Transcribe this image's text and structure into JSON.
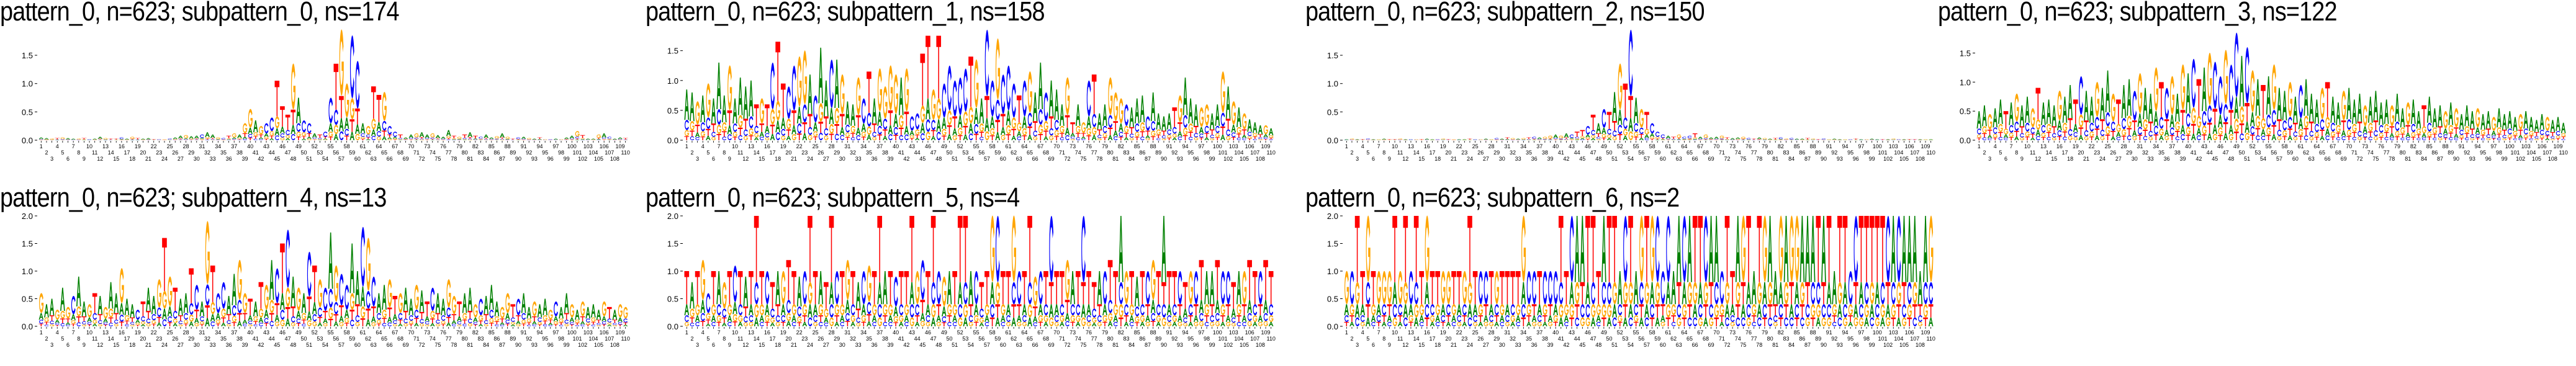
{
  "colors": {
    "A": "#008000",
    "C": "#0000ff",
    "G": "#ffa500",
    "T": "#ff0000"
  },
  "chart_data": [
    {
      "type": "sequence-logo",
      "title": "pattern_0, n=623; subpattern_0, ns=174",
      "ylim": [
        0,
        1.95
      ],
      "yticks": [
        "0.0",
        "0.5",
        "1.0",
        "1.5"
      ],
      "heights": [
        0.05,
        0.04,
        0.03,
        0.04,
        0.05,
        0.04,
        0.03,
        0.03,
        0.04,
        0.02,
        0.03,
        0.06,
        0.04,
        0.03,
        0.03,
        0.05,
        0.03,
        0.06,
        0.04,
        0.03,
        0.04,
        0.02,
        0.02,
        0.02,
        0.03,
        0.05,
        0.08,
        0.09,
        0.07,
        0.08,
        0.1,
        0.14,
        0.1,
        0.05,
        0.04,
        0.08,
        0.12,
        0.1,
        0.3,
        0.55,
        0.35,
        0.25,
        0.3,
        0.4,
        1.05,
        0.6,
        0.45,
        1.35,
        0.75,
        0.35,
        0.3,
        0.12,
        0.1,
        0.15,
        0.75,
        1.35,
        1.95,
        1.0,
        1.85,
        1.4,
        0.3,
        0.25,
        0.95,
        0.8,
        0.85,
        0.25,
        0.15,
        0.1,
        0.05,
        0.1,
        0.12,
        0.14,
        0.1,
        0.12,
        0.09,
        0.06,
        0.18,
        0.08,
        0.06,
        0.1,
        0.14,
        0.08,
        0.06,
        0.1,
        0.05,
        0.07,
        0.12,
        0.06,
        0.03,
        0.05,
        0.06,
        0.04,
        0.03,
        0.05,
        0.02,
        0.02,
        0.03,
        0.02,
        0.05,
        0.08,
        0.16,
        0.09,
        0.03,
        0.03,
        0.1,
        0.12,
        0.06,
        0.03,
        0.05,
        0.04
      ],
      "top_letters": "AAGTGAAGTCAAGTTCAGTAATCGCAAGAACAAGCTGAGGAGCCTTTGACCATCCTGGCCAGTTGCCTAAGAAGAAATGTATCAAGAGTCAGATGCAGAAGTAAGACAAT"
    },
    {
      "type": "sequence-logo",
      "title": "pattern_0, n=623; subpattern_1, ns=158",
      "ylim": [
        0,
        1.85
      ],
      "yticks": [
        "0.0",
        "0.5",
        "1.0",
        "1.5"
      ],
      "heights": [
        0.85,
        0.8,
        0.65,
        0.75,
        0.95,
        0.7,
        1.3,
        0.75,
        1.25,
        0.7,
        1.05,
        0.9,
        1.0,
        0.6,
        0.7,
        0.6,
        1.3,
        1.65,
        0.95,
        0.9,
        1.25,
        1.4,
        1.5,
        1.1,
        0.75,
        1.55,
        1.0,
        1.35,
        1.35,
        1.1,
        0.65,
        0.6,
        1.05,
        0.7,
        1.15,
        0.7,
        1.2,
        0.9,
        1.25,
        1.1,
        1.05,
        1.2,
        0.4,
        0.45,
        1.45,
        1.75,
        0.85,
        1.75,
        0.95,
        1.25,
        1.0,
        1.05,
        1.2,
        1.4,
        1.35,
        0.7,
        1.85,
        1.0,
        1.7,
        1.1,
        1.25,
        0.95,
        0.75,
        1.0,
        1.15,
        0.8,
        1.3,
        0.8,
        1.0,
        0.85,
        0.6,
        1.05,
        0.3,
        0.6,
        0.3,
        1.0,
        1.1,
        0.45,
        0.6,
        1.05,
        0.8,
        0.7,
        0.6,
        0.55,
        0.7,
        0.75,
        0.4,
        0.8,
        0.45,
        0.4,
        0.45,
        0.55,
        0.75,
        1.05,
        0.7,
        0.6,
        0.55,
        0.6,
        0.45,
        0.6,
        1.15,
        0.9,
        0.65,
        0.55,
        0.45,
        0.35,
        0.3,
        0.25,
        0.25,
        0.2
      ],
      "top_letters": "AAGAGAAAGAAAATGTCTTCCGGACAACAGAAGCTAGGGGAGCCTTGTCCCCCTGACCGCCCTCGAACAAAGTAGCTAAGGGCAAACAAAATGAAAGGAAGAGAGAAAG"
    },
    {
      "type": "sequence-logo",
      "title": "pattern_0, n=623; subpattern_2, ns=150",
      "ylim": [
        0,
        1.95
      ],
      "yticks": [
        "0.0",
        "0.5",
        "1.0",
        "1.5"
      ],
      "heights": [
        0.02,
        0.03,
        0.02,
        0.02,
        0.03,
        0.02,
        0.02,
        0.03,
        0.02,
        0.02,
        0.03,
        0.02,
        0.02,
        0.02,
        0.02,
        0.03,
        0.02,
        0.02,
        0.03,
        0.02,
        0.02,
        0.02,
        0.02,
        0.03,
        0.02,
        0.02,
        0.03,
        0.02,
        0.04,
        0.03,
        0.05,
        0.04,
        0.03,
        0.04,
        0.05,
        0.06,
        0.05,
        0.06,
        0.08,
        0.1,
        0.08,
        0.12,
        0.1,
        0.15,
        0.18,
        0.25,
        0.45,
        0.3,
        0.55,
        0.5,
        0.85,
        1.35,
        1.0,
        1.95,
        0.75,
        0.55,
        0.5,
        0.3,
        0.15,
        0.1,
        0.08,
        0.06,
        0.1,
        0.06,
        0.08,
        0.12,
        0.06,
        0.1,
        0.05,
        0.06,
        0.08,
        0.05,
        0.04,
        0.05,
        0.06,
        0.04,
        0.03,
        0.05,
        0.04,
        0.03,
        0.04,
        0.05,
        0.03,
        0.04,
        0.03,
        0.03,
        0.04,
        0.03,
        0.02,
        0.03,
        0.02,
        0.03,
        0.02,
        0.02,
        0.02,
        0.03,
        0.02,
        0.02,
        0.03,
        0.02,
        0.02,
        0.02,
        0.03,
        0.02,
        0.02,
        0.02,
        0.02,
        0.02,
        0.02,
        0.02
      ],
      "top_letters": "AGATCAGATTGACGTAACGTGAATCGAGCATGAGTCAGGAGACTTCTACTAGTCAGTCCCATGCCTAGAAGTAAGCTAGATCGCAATGTCGAAGCTAGAATAGCATTAG"
    },
    {
      "type": "sequence-logo",
      "title": "pattern_0, n=623; subpattern_3, ns=122",
      "ylim": [
        0,
        1.9
      ],
      "yticks": [
        "0.0",
        "0.5",
        "1.0",
        "1.5"
      ],
      "heights": [
        0.5,
        0.6,
        0.45,
        0.55,
        0.7,
        0.5,
        0.65,
        0.8,
        0.6,
        0.75,
        0.55,
        0.9,
        0.65,
        0.7,
        0.6,
        0.85,
        0.75,
        0.95,
        0.7,
        1.1,
        0.85,
        0.75,
        1.0,
        0.9,
        1.2,
        0.8,
        0.7,
        0.95,
        1.05,
        0.85,
        1.15,
        0.9,
        0.8,
        1.25,
        1.0,
        0.9,
        1.1,
        0.8,
        1.3,
        1.15,
        1.4,
        1.05,
        1.25,
        1.5,
        1.35,
        1.1,
        1.55,
        1.3,
        1.85,
        1.45,
        1.6,
        1.2,
        1.05,
        0.95,
        1.1,
        1.3,
        0.9,
        0.85,
        1.0,
        0.75,
        0.95,
        1.05,
        0.8,
        0.7,
        0.9,
        1.0,
        0.75,
        0.65,
        0.85,
        0.9,
        0.7,
        0.8,
        0.6,
        0.75,
        0.85,
        0.65,
        0.7,
        0.6,
        0.8,
        0.55,
        0.65,
        0.7,
        0.5,
        0.6,
        0.75,
        0.55,
        0.6,
        0.5,
        0.65,
        0.55,
        0.45,
        0.6,
        0.5,
        0.55,
        0.45,
        0.5,
        0.4,
        0.55,
        0.45,
        0.5,
        0.4,
        0.45,
        0.5,
        0.4,
        0.35,
        0.45,
        0.4,
        0.35,
        0.4,
        0.3
      ],
      "top_letters": "AAGAATAGAAGTAAAGAATCAAGAAGTAACGAAGTCGAGACTAGCCGCCACGATAGAAGACAAAGTAAGAAAGAAAAGAAGAATAAAGAGAAAGAAGAAAAGAAAAGAAA"
    },
    {
      "type": "sequence-logo",
      "title": "pattern_0, n=623; subpattern_4, ns=13",
      "ylim": [
        0,
        2.0
      ],
      "yticks": [
        "0.0",
        "0.5",
        "1.0",
        "1.5",
        "2.0"
      ],
      "heights": [
        0.6,
        0.4,
        0.5,
        0.3,
        0.7,
        0.35,
        0.55,
        0.9,
        0.45,
        0.4,
        0.6,
        0.55,
        0.35,
        0.8,
        0.6,
        1.05,
        0.5,
        0.4,
        0.3,
        0.45,
        0.7,
        0.55,
        0.85,
        1.6,
        0.9,
        0.7,
        0.5,
        0.6,
        1.05,
        0.75,
        0.45,
        1.9,
        1.1,
        0.6,
        0.8,
        0.55,
        0.95,
        1.2,
        0.6,
        0.5,
        0.45,
        0.8,
        0.75,
        1.2,
        1.05,
        1.5,
        1.75,
        0.9,
        0.7,
        0.6,
        1.35,
        1.1,
        0.85,
        0.7,
        1.7,
        1.1,
        0.95,
        0.75,
        1.5,
        1.0,
        1.8,
        1.6,
        0.9,
        0.6,
        0.75,
        0.85,
        0.55,
        0.6,
        0.7,
        0.5,
        0.75,
        0.65,
        0.45,
        0.7,
        0.6,
        0.5,
        0.85,
        0.55,
        0.45,
        0.6,
        0.7,
        0.4,
        0.5,
        0.55,
        0.75,
        0.45,
        0.35,
        0.6,
        0.4,
        0.5,
        0.6,
        0.35,
        0.45,
        0.4,
        0.5,
        0.3,
        0.45,
        0.35,
        0.6,
        0.4,
        0.3,
        0.45,
        0.35,
        0.4,
        0.3,
        0.45,
        0.35,
        0.3,
        0.4,
        0.35
      ],
      "top_letters": "GAAGAGCAAGTAGAAGAACTAAGTGTAATCAGTCCAAGGTATGACTCAGACTGCAGCCAACGCAAGTGAAGATCAAGGTAAGCAAAGGTCAAGAAGCAAGAGAAAGTAG"
    },
    {
      "type": "sequence-logo",
      "title": "pattern_0, n=623; subpattern_5, ns=4",
      "ylim": [
        0,
        2.0
      ],
      "yticks": [
        "0.0",
        "0.5",
        "1.0",
        "1.5",
        "2.0"
      ],
      "heights": [
        1.0,
        0.8,
        1.0,
        1.2,
        0.6,
        1.0,
        1.0,
        0.8,
        1.0,
        1.1,
        1.0,
        0.9,
        1.0,
        2.0,
        1.0,
        1.0,
        0.8,
        1.0,
        1.0,
        1.2,
        1.0,
        0.9,
        1.0,
        2.0,
        1.0,
        1.0,
        0.8,
        2.0,
        1.0,
        1.0,
        1.2,
        1.0,
        0.8,
        1.0,
        1.1,
        1.0,
        2.0,
        1.0,
        1.0,
        0.9,
        1.0,
        1.0,
        2.0,
        1.0,
        1.2,
        1.0,
        2.0,
        1.0,
        0.9,
        1.0,
        1.0,
        2.0,
        2.0,
        1.0,
        1.0,
        0.8,
        1.0,
        2.0,
        2.0,
        1.0,
        1.0,
        2.0,
        1.0,
        1.0,
        2.0,
        0.9,
        1.0,
        1.0,
        2.0,
        1.0,
        1.0,
        1.2,
        1.0,
        1.0,
        2.0,
        1.0,
        0.8,
        1.0,
        1.0,
        1.2,
        1.0,
        2.0,
        1.0,
        1.0,
        0.9,
        1.0,
        1.0,
        1.2,
        1.0,
        2.0,
        1.0,
        1.0,
        1.0,
        0.8,
        1.0,
        1.0,
        1.2,
        1.0,
        1.0,
        1.2,
        1.0,
        1.0,
        0.8,
        1.0,
        1.0,
        1.2,
        1.0,
        1.0,
        1.2,
        1.0
      ],
      "top_letters": "TATGCTAGTCTATTTCTAGTTACTTATTCTGTACGTTATCTTTGCTTCGATTTACTTGCTTGCTTGCTCTTGATCTTACTTAGTATCGTATTCTGCTAATCCTAGTTCT"
    },
    {
      "type": "sequence-logo",
      "title": "pattern_0, n=623; subpattern_6, ns=2",
      "ylim": [
        0,
        2.0
      ],
      "yticks": [
        "0.0",
        "0.5",
        "1.0",
        "1.5",
        "2.0"
      ],
      "heights": [
        1.0,
        1.0,
        2.0,
        1.0,
        2.0,
        1.0,
        1.0,
        1.0,
        1.0,
        2.0,
        1.0,
        2.0,
        1.0,
        2.0,
        1.0,
        2.0,
        1.0,
        1.0,
        1.0,
        1.0,
        1.0,
        1.0,
        1.0,
        2.0,
        1.0,
        1.0,
        1.0,
        1.0,
        1.0,
        1.0,
        1.0,
        1.0,
        1.0,
        2.0,
        1.0,
        1.0,
        1.0,
        1.0,
        1.0,
        1.0,
        2.0,
        1.0,
        2.0,
        2.0,
        2.0,
        2.0,
        2.0,
        1.0,
        2.0,
        2.0,
        2.0,
        1.0,
        2.0,
        2.0,
        1.0,
        2.0,
        2.0,
        2.0,
        2.0,
        1.0,
        2.0,
        1.0,
        2.0,
        2.0,
        2.0,
        2.0,
        2.0,
        2.0,
        2.0,
        2.0,
        1.0,
        2.0,
        1.0,
        2.0,
        2.0,
        2.0,
        1.0,
        2.0,
        2.0,
        2.0,
        1.0,
        2.0,
        2.0,
        2.0,
        2.0,
        2.0,
        2.0,
        2.0,
        2.0,
        2.0,
        2.0,
        1.0,
        2.0,
        2.0,
        1.0,
        2.0,
        2.0,
        2.0,
        2.0,
        2.0,
        2.0,
        2.0,
        2.0,
        2.0,
        2.0,
        2.0,
        2.0,
        1.0,
        2.0,
        2.0
      ],
      "top_letters": "GCTTGTGGGTGTCTTGTTGGTTGTTCCTGTTTTGCCTCCCTTCAATTTATTACTAGTGCCCAACATTCAACTTAGTATGAAGAGGAAATATATTCCTTTTTCACAAAAA"
    }
  ]
}
